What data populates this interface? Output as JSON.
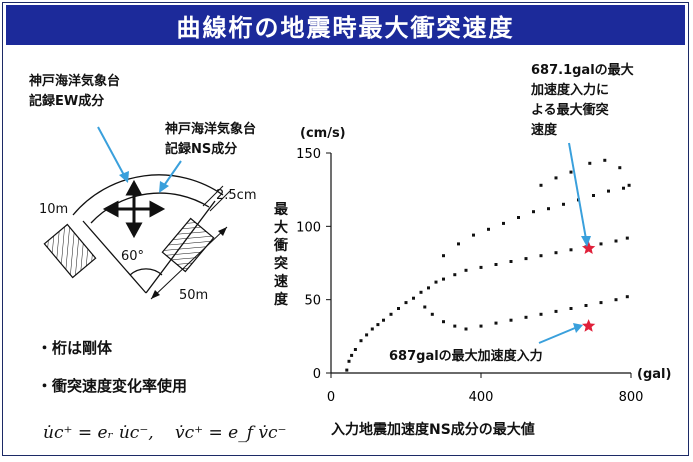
{
  "slide_title": "曲線桁の地震時最大衝突速度",
  "diagram": {
    "label_ew": [
      "神戸海洋気象台",
      "記録EW成分"
    ],
    "label_ns": [
      "神戸海洋気象台",
      "記録NS成分"
    ],
    "dim_10m": "10m",
    "dim_2_5cm": "2.5cm",
    "dim_50m": "50m",
    "angle": "60°"
  },
  "bullets": [
    "・桁は剛体",
    "・衝突速度変化率使用"
  ],
  "formulas": [
    "u̇c⁺ = eᵣ u̇c⁻,",
    "v̇c⁺ = e_f v̇c⁻"
  ],
  "annotations": {
    "max_input_687_1": [
      "687.1galの最大",
      "加速度入力に",
      "よる最大衝突",
      "速度"
    ],
    "max_input_687": "687galの最大加速度入力"
  },
  "colors": {
    "title_bar": "#1c2a9a",
    "marker": "#e0203a",
    "arrow": "#3aa0dc",
    "points": "#111111"
  },
  "chart_data": {
    "type": "scatter",
    "title": "",
    "xlabel": "入力地震加速度NS成分の最大値",
    "ylabel": "最大衝突速度",
    "x_unit": "(gal)",
    "y_unit": "(cm/s)",
    "xlim": [
      0,
      800
    ],
    "ylim": [
      0,
      150
    ],
    "xticks": [
      0,
      400,
      800
    ],
    "yticks": [
      0,
      50,
      100,
      150
    ],
    "grid": false,
    "series": [
      {
        "marker": "dot",
        "description_points": "dense cloud of simulation results",
        "points": [
          [
            42,
            2
          ],
          [
            48,
            8
          ],
          [
            55,
            12
          ],
          [
            65,
            16
          ],
          [
            80,
            22
          ],
          [
            95,
            26
          ],
          [
            110,
            30
          ],
          [
            125,
            33
          ],
          [
            140,
            36
          ],
          [
            160,
            40
          ],
          [
            180,
            44
          ],
          [
            200,
            48
          ],
          [
            220,
            51
          ],
          [
            240,
            55
          ],
          [
            260,
            58
          ],
          [
            280,
            62
          ],
          [
            300,
            64
          ],
          [
            330,
            67
          ],
          [
            360,
            70
          ],
          [
            400,
            72
          ],
          [
            440,
            74
          ],
          [
            480,
            76
          ],
          [
            520,
            78
          ],
          [
            560,
            80
          ],
          [
            600,
            82
          ],
          [
            640,
            84
          ],
          [
            680,
            86
          ],
          [
            720,
            88
          ],
          [
            760,
            90
          ],
          [
            790,
            92
          ],
          [
            250,
            45
          ],
          [
            270,
            40
          ],
          [
            300,
            35
          ],
          [
            330,
            32
          ],
          [
            360,
            30
          ],
          [
            400,
            32
          ],
          [
            440,
            34
          ],
          [
            480,
            36
          ],
          [
            520,
            38
          ],
          [
            560,
            40
          ],
          [
            600,
            42
          ],
          [
            640,
            44
          ],
          [
            680,
            46
          ],
          [
            720,
            48
          ],
          [
            760,
            50
          ],
          [
            790,
            52
          ],
          [
            300,
            80
          ],
          [
            340,
            88
          ],
          [
            380,
            94
          ],
          [
            420,
            98
          ],
          [
            460,
            102
          ],
          [
            500,
            106
          ],
          [
            540,
            110
          ],
          [
            580,
            112
          ],
          [
            620,
            115
          ],
          [
            660,
            118
          ],
          [
            700,
            121
          ],
          [
            740,
            124
          ],
          [
            780,
            126
          ],
          [
            560,
            128
          ],
          [
            600,
            133
          ],
          [
            640,
            137
          ],
          [
            690,
            143
          ],
          [
            730,
            145
          ],
          [
            770,
            140
          ],
          [
            795,
            128
          ]
        ]
      },
      {
        "name": "687.1gal",
        "marker": "star",
        "points": [
          [
            687.1,
            85
          ]
        ]
      },
      {
        "name": "687gal",
        "marker": "star",
        "points": [
          [
            687,
            32
          ]
        ]
      }
    ]
  }
}
